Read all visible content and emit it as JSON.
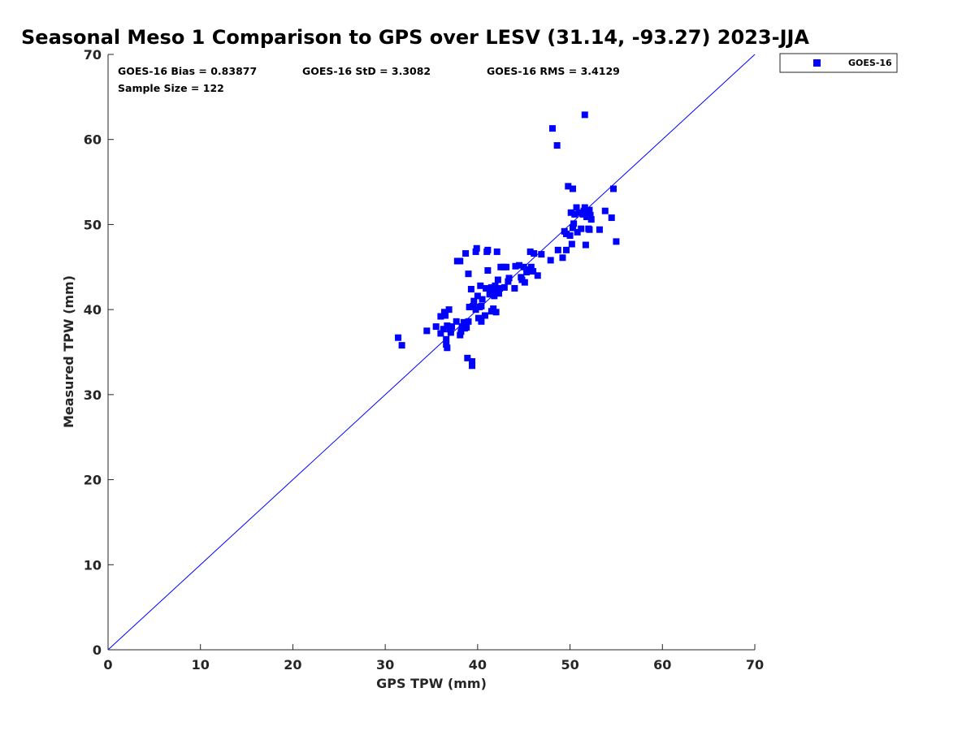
{
  "chart_data": {
    "type": "scatter",
    "title": "Seasonal Meso 1 Comparison to GPS over LESV (31.14, -93.27) 2023-JJA",
    "xlabel": "GPS TPW (mm)",
    "ylabel": "Measured TPW (mm)",
    "xlim": [
      0,
      70
    ],
    "ylim": [
      0,
      70
    ],
    "xticks": [
      "0",
      "10",
      "20",
      "30",
      "40",
      "50",
      "60",
      "70"
    ],
    "yticks": [
      "0",
      "10",
      "20",
      "30",
      "40",
      "50",
      "60",
      "70"
    ],
    "grid": false,
    "legend_position": "outside-top-right",
    "reference_line": {
      "type": "one-to-one",
      "from": [
        0,
        0
      ],
      "to": [
        70,
        70
      ],
      "color": "#0000ff"
    },
    "stats": {
      "bias": "GOES-16 Bias = 0.83877",
      "std": "GOES-16 StD = 3.3082",
      "rms": "GOES-16 RMS = 3.4129",
      "sample_size": "Sample Size = 122"
    },
    "series": [
      {
        "name": "GOES-16",
        "color": "#0000ff",
        "marker": "square",
        "points": [
          [
            31.4,
            36.7
          ],
          [
            31.8,
            35.8
          ],
          [
            34.5,
            37.5
          ],
          [
            35.5,
            38.0
          ],
          [
            36.0,
            37.2
          ],
          [
            36.0,
            39.2
          ],
          [
            36.3,
            37.7
          ],
          [
            36.4,
            39.7
          ],
          [
            36.5,
            39.3
          ],
          [
            36.6,
            36.5
          ],
          [
            36.6,
            35.9
          ],
          [
            36.7,
            35.5
          ],
          [
            36.7,
            38.1
          ],
          [
            36.9,
            40.0
          ],
          [
            37.0,
            37.7
          ],
          [
            37.2,
            38.0
          ],
          [
            37.1,
            37.3
          ],
          [
            37.7,
            38.6
          ],
          [
            37.8,
            45.7
          ],
          [
            38.1,
            45.7
          ],
          [
            38.1,
            37.0
          ],
          [
            38.2,
            37.4
          ],
          [
            38.3,
            38.0
          ],
          [
            38.5,
            38.5
          ],
          [
            38.6,
            37.8
          ],
          [
            38.7,
            46.6
          ],
          [
            38.8,
            37.9
          ],
          [
            38.9,
            34.3
          ],
          [
            39.0,
            44.2
          ],
          [
            39.0,
            38.6
          ],
          [
            39.1,
            40.3
          ],
          [
            39.3,
            42.4
          ],
          [
            39.4,
            33.9
          ],
          [
            39.4,
            33.4
          ],
          [
            39.5,
            40.4
          ],
          [
            39.6,
            41.0
          ],
          [
            39.8,
            40.0
          ],
          [
            39.8,
            46.8
          ],
          [
            39.9,
            47.2
          ],
          [
            40.0,
            41.6
          ],
          [
            40.1,
            39.0
          ],
          [
            40.3,
            42.8
          ],
          [
            40.4,
            38.6
          ],
          [
            40.4,
            40.4
          ],
          [
            40.5,
            41.2
          ],
          [
            40.8,
            39.3
          ],
          [
            40.9,
            42.5
          ],
          [
            41.0,
            46.8
          ],
          [
            41.1,
            47.0
          ],
          [
            41.1,
            44.6
          ],
          [
            41.3,
            41.8
          ],
          [
            41.4,
            42.0
          ],
          [
            41.5,
            42.6
          ],
          [
            41.5,
            39.8
          ],
          [
            41.7,
            40.1
          ],
          [
            41.8,
            41.6
          ],
          [
            41.9,
            42.8
          ],
          [
            42.0,
            42.2
          ],
          [
            42.0,
            39.7
          ],
          [
            42.1,
            46.8
          ],
          [
            42.2,
            43.5
          ],
          [
            42.3,
            41.9
          ],
          [
            42.4,
            42.5
          ],
          [
            42.5,
            45.0
          ],
          [
            42.8,
            45.0
          ],
          [
            42.9,
            42.6
          ],
          [
            43.1,
            45.0
          ],
          [
            43.3,
            43.3
          ],
          [
            43.4,
            43.7
          ],
          [
            44.0,
            42.5
          ],
          [
            44.1,
            45.1
          ],
          [
            44.5,
            45.2
          ],
          [
            44.7,
            43.8
          ],
          [
            44.8,
            43.5
          ],
          [
            45.0,
            45.0
          ],
          [
            45.1,
            43.2
          ],
          [
            45.3,
            44.4
          ],
          [
            45.5,
            44.7
          ],
          [
            45.7,
            46.8
          ],
          [
            45.8,
            45.0
          ],
          [
            46.0,
            44.5
          ],
          [
            46.1,
            46.6
          ],
          [
            46.5,
            44.0
          ],
          [
            46.9,
            46.5
          ],
          [
            47.9,
            45.8
          ],
          [
            48.1,
            61.3
          ],
          [
            48.6,
            59.3
          ],
          [
            48.7,
            47.0
          ],
          [
            49.2,
            46.1
          ],
          [
            49.4,
            49.2
          ],
          [
            49.6,
            48.9
          ],
          [
            49.6,
            47.0
          ],
          [
            49.8,
            54.5
          ],
          [
            50.0,
            48.7
          ],
          [
            50.1,
            51.4
          ],
          [
            50.2,
            47.7
          ],
          [
            50.3,
            49.6
          ],
          [
            50.3,
            54.2
          ],
          [
            50.4,
            50.1
          ],
          [
            50.5,
            51.2
          ],
          [
            50.7,
            52.0
          ],
          [
            50.8,
            49.1
          ],
          [
            51.0,
            51.4
          ],
          [
            51.2,
            49.5
          ],
          [
            51.4,
            51.2
          ],
          [
            51.5,
            51.6
          ],
          [
            51.6,
            62.9
          ],
          [
            51.6,
            52.0
          ],
          [
            51.7,
            47.6
          ],
          [
            51.8,
            50.9
          ],
          [
            52.0,
            49.5
          ],
          [
            52.1,
            51.7
          ],
          [
            52.2,
            51.1
          ],
          [
            52.3,
            50.6
          ],
          [
            52.1,
            49.4
          ],
          [
            53.2,
            49.4
          ],
          [
            53.8,
            51.6
          ],
          [
            54.5,
            50.8
          ],
          [
            54.7,
            54.2
          ],
          [
            55.0,
            48.0
          ],
          [
            40.2,
            40.3
          ],
          [
            41.6,
            42.3
          ]
        ]
      }
    ]
  }
}
